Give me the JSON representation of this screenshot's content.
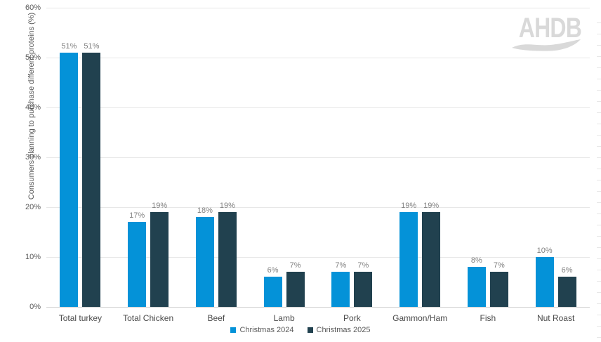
{
  "logo": {
    "text": "AHDB"
  },
  "colors": {
    "gridline": "#e7e7e7",
    "axis-line": "#d2d2d2",
    "tick-label": "#595959",
    "category-label": "#4a4a4a",
    "data-label": "#808080",
    "legend-label": "#595959",
    "logo": "#d9d9d9",
    "series-2024": "#0492D8",
    "series-2025": "#21414F"
  },
  "chart_data": {
    "type": "bar",
    "title": "",
    "xlabel": "",
    "ylabel": "Consumers planning to purchase different proteins (%)",
    "ylim": [
      0,
      60
    ],
    "ytick_step": 10,
    "ytick_suffix": "%",
    "grid": true,
    "legend_position": "bottom",
    "data_label_suffix": "%",
    "categories": [
      "Total turkey",
      "Total Chicken",
      "Beef",
      "Lamb",
      "Pork",
      "Gammon/Ham",
      "Fish",
      "Nut Roast"
    ],
    "series": [
      {
        "name": "Christmas 2024",
        "color": "#0492D8",
        "values": [
          51,
          17,
          18,
          6,
          7,
          19,
          8,
          10
        ]
      },
      {
        "name": "Christmas 2025",
        "color": "#21414F",
        "values": [
          51,
          19,
          19,
          7,
          7,
          19,
          7,
          6
        ]
      }
    ]
  }
}
